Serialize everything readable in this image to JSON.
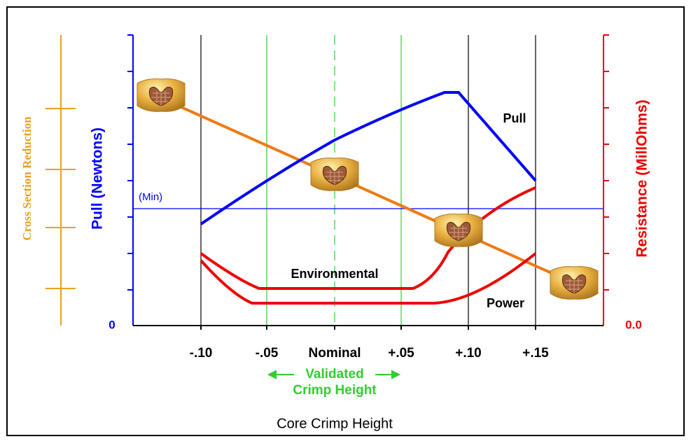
{
  "axes": {
    "left_label": "Pull (Newtons)",
    "left_zero": "0",
    "right_label": "Resistance (MillOhms)",
    "right_zero": "0.0",
    "outer_label": "Cross Section Reduction",
    "x_label": "Core Crimp Height",
    "x_ticks": [
      "-.10",
      "-.05",
      "Nominal",
      "+.05",
      "+.10",
      "+.15"
    ]
  },
  "annotations": {
    "min": "(Min)",
    "pull": "Pull",
    "environmental": "Environmental",
    "power": "Power",
    "validated": "Validated",
    "crimp_height": "Crimp Height"
  }
}
